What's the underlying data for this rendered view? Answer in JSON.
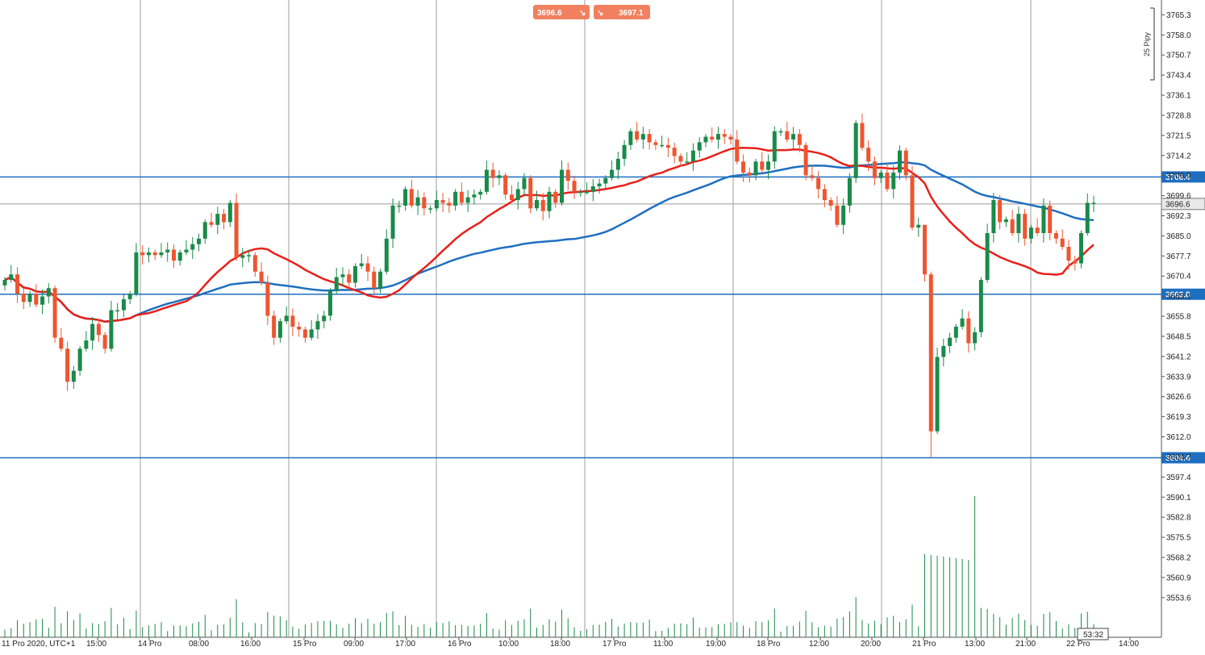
{
  "quotes": {
    "sell": "3696.6",
    "buy": "3697.1",
    "sell_icon": "arrow-down-right-icon",
    "buy_icon": "arrow-down-right-icon",
    "color": "#f08060"
  },
  "scale_label": "25 Pipy",
  "timer": "53:32",
  "colors": {
    "bull": "#1a8a4a",
    "bear": "#ee5530",
    "ma_fast": "#e8201a",
    "ma_slow": "#1f6fc0",
    "level": "#1f6fc0",
    "volume": "#1a8a4a",
    "grid": "#9e9e9e"
  },
  "chart_data": {
    "type": "candlestick",
    "title": "",
    "xlabel": "",
    "ylabel": "",
    "ylim": [
      3547.4,
      3769.8
    ],
    "grid": true,
    "y_ticks": [
      "3765.3",
      "3758.0",
      "3750.7",
      "3743.4",
      "3736.1",
      "3728.8",
      "3721.5",
      "3714.2",
      "3706.9",
      "3699.6",
      "3692.3",
      "3685.0",
      "3677.7",
      "3670.4",
      "3663.1",
      "3655.8",
      "3648.5",
      "3641.2",
      "3633.9",
      "3626.6",
      "3619.3",
      "3612.0",
      "3604.7",
      "3597.4",
      "3590.1",
      "3582.8",
      "3575.5",
      "3568.2",
      "3560.9",
      "3553.6"
    ],
    "x_ticks": [
      "11 Pro 2020, UTC+1",
      "15:00",
      "14 Pro",
      "08:00",
      "16:00",
      "15 Pro",
      "09:00",
      "17:00",
      "16 Pro",
      "10:00",
      "18:00",
      "17 Pro",
      "11:00",
      "19:00",
      "18 Pro",
      "12:00",
      "20:00",
      "21 Pro",
      "13:00",
      "21:00",
      "22 Pro",
      "14:00"
    ],
    "levels": [
      {
        "value": 3706.4,
        "label": "3706.4"
      },
      {
        "value": 3663.8,
        "label": "3663.8"
      },
      {
        "value": 3604.4,
        "label": "3604.4"
      }
    ],
    "current_price": {
      "value": 3696.6,
      "label": "3696.6"
    },
    "close_path": [
      3669,
      3671,
      3664,
      3661,
      3664,
      3660,
      3663,
      3666,
      3648,
      3644,
      3632,
      3636,
      3644,
      3647,
      3653,
      3649,
      3644,
      3658,
      3658,
      3662,
      3664,
      3679,
      3678,
      3679,
      3678,
      3679,
      3680,
      3676,
      3679,
      3680,
      3682,
      3684,
      3690,
      3689,
      3693,
      3690,
      3697,
      3677,
      3678,
      3678,
      3672,
      3668,
      3656,
      3648,
      3654,
      3656,
      3652,
      3651,
      3648,
      3651,
      3654,
      3656,
      3665,
      3670,
      3671,
      3668,
      3674,
      3675,
      3672,
      3666,
      3672,
      3684,
      3696,
      3696,
      3702,
      3696,
      3699,
      3695,
      3695,
      3698,
      3697,
      3696,
      3701,
      3697,
      3699,
      3700,
      3701,
      3709,
      3706,
      3707,
      3700,
      3698,
      3702,
      3706,
      3695,
      3698,
      3694,
      3701,
      3697,
      3709,
      3705,
      3701,
      3701,
      3701,
      3703,
      3704,
      3706,
      3709,
      3713,
      3718,
      3723,
      3720,
      3722,
      3719,
      3718,
      3718,
      3717,
      3714,
      3712,
      3712,
      3716,
      3719,
      3721,
      3720,
      3722,
      3721,
      3720,
      3712,
      3708,
      3707,
      3712,
      3709,
      3712,
      3723,
      3723,
      3720,
      3722,
      3718,
      3707,
      3706,
      3702,
      3698,
      3696,
      3689,
      3696,
      3706,
      3726,
      3717,
      3712,
      3706,
      3708,
      3702,
      3708,
      3716,
      3707,
      3688,
      3689,
      3671,
      3614,
      3641,
      3645,
      3648,
      3652,
      3655,
      3646,
      3650,
      3669,
      3686,
      3698,
      3690,
      3691,
      3686,
      3693,
      3684,
      3688,
      3686,
      3696,
      3686,
      3684,
      3681,
      3676,
      3675,
      3686,
      3697,
      3697
    ]
  }
}
